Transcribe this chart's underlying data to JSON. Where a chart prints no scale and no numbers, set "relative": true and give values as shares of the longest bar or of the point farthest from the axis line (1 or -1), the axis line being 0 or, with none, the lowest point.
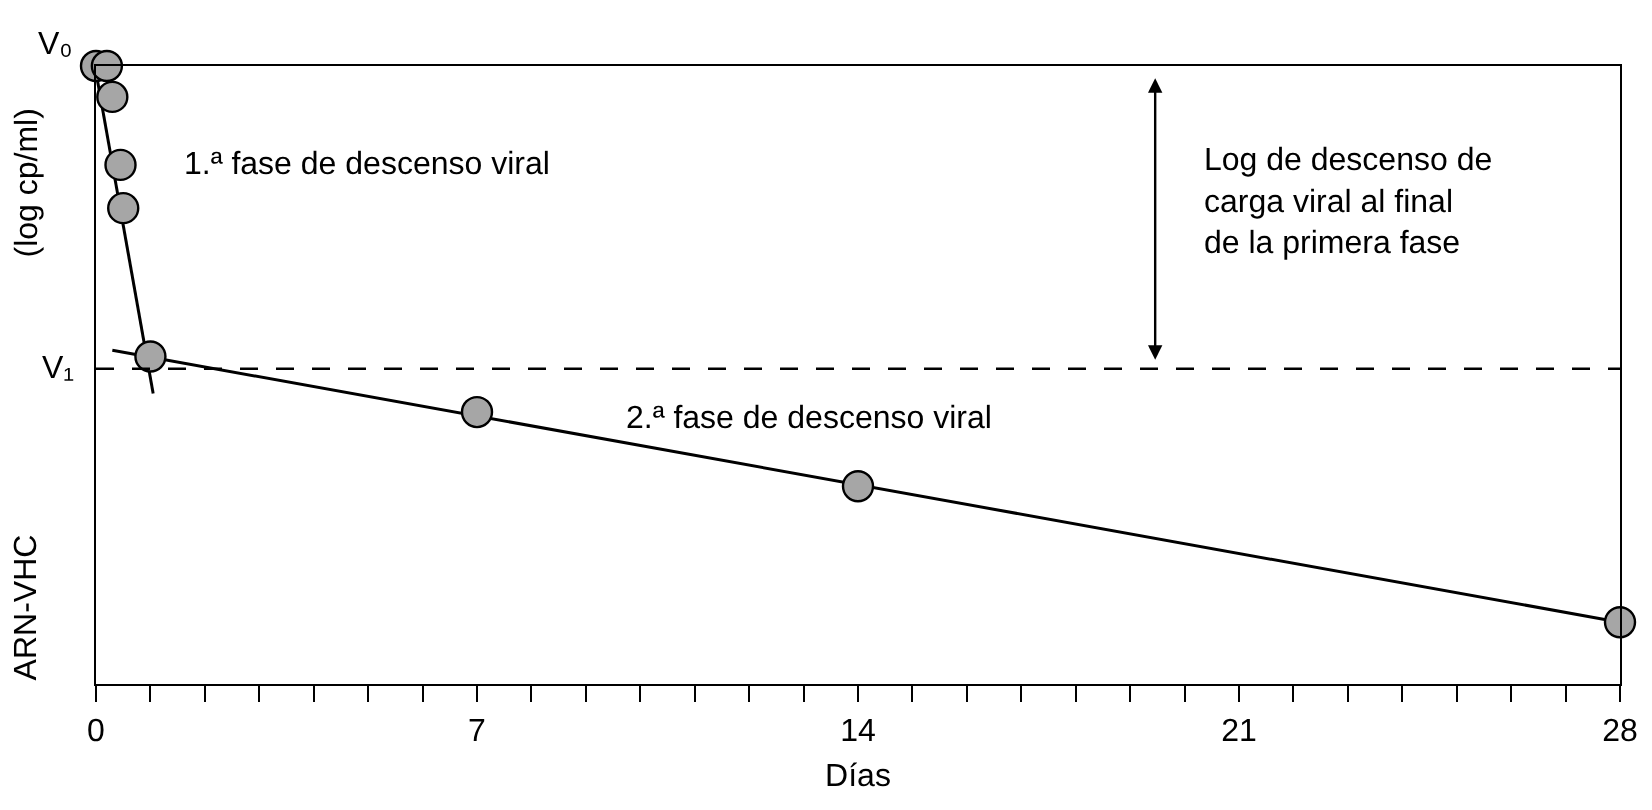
{
  "chart_data": {
    "type": "scatter",
    "relative": true,
    "xlabel": "Días",
    "ylabel": "ARN-VHC (log cp/ml)",
    "xlim": [
      0,
      28
    ],
    "xticks": [
      0,
      {
        "value": 1,
        "label": null
      },
      {
        "value": 2,
        "label": null
      },
      {
        "value": 3,
        "label": null
      },
      {
        "value": 4,
        "label": null
      },
      {
        "value": 5,
        "label": null
      },
      {
        "value": 6,
        "label": null
      },
      7,
      {
        "value": 8,
        "label": null
      },
      {
        "value": 9,
        "label": null
      },
      {
        "value": 10,
        "label": null
      },
      {
        "value": 11,
        "label": null
      },
      {
        "value": 12,
        "label": null
      },
      {
        "value": 13,
        "label": null
      },
      14,
      {
        "value": 15,
        "label": null
      },
      {
        "value": 16,
        "label": null
      },
      {
        "value": 17,
        "label": null
      },
      {
        "value": 18,
        "label": null
      },
      {
        "value": 19,
        "label": null
      },
      {
        "value": 20,
        "label": null
      },
      21,
      {
        "value": 22,
        "label": null
      },
      {
        "value": 23,
        "label": null
      },
      {
        "value": 24,
        "label": null
      },
      {
        "value": 25,
        "label": null
      },
      {
        "value": 26,
        "label": null
      },
      {
        "value": 27,
        "label": null
      },
      28
    ],
    "marker": "circle",
    "grid": false,
    "series": [
      {
        "type": "line",
        "color": "#000000",
        "marker": "none",
        "x": [
          0,
          1.05
        ],
        "values": [
          0.99,
          0.47
        ]
      },
      {
        "type": "line",
        "color": "#000000",
        "marker": "none",
        "x": [
          0.3,
          28
        ],
        "values": [
          0.54,
          0.1
        ]
      },
      {
        "color": "#a6a6a6",
        "x": [
          0,
          0.2,
          0.3,
          0.45,
          0.5,
          1
        ],
        "values": [
          1,
          1,
          0.95,
          0.84,
          0.77,
          0.53
        ]
      },
      {
        "color": "#a6a6a6",
        "x": [
          7,
          14,
          28
        ],
        "values": [
          0.44,
          0.32,
          0.1
        ]
      }
    ],
    "ref_lines": [
      {
        "axis": "y",
        "value": 0.51,
        "label": "V₁",
        "line_style": "dashed",
        "color": "#000000"
      }
    ],
    "annotations": [
      {
        "text": "V₀",
        "x": 0,
        "y": 1
      },
      "1.ª fase de descenso viral",
      "2.ª fase de descenso viral",
      "Log de descenso de carga viral al final de la primera fase"
    ]
  }
}
